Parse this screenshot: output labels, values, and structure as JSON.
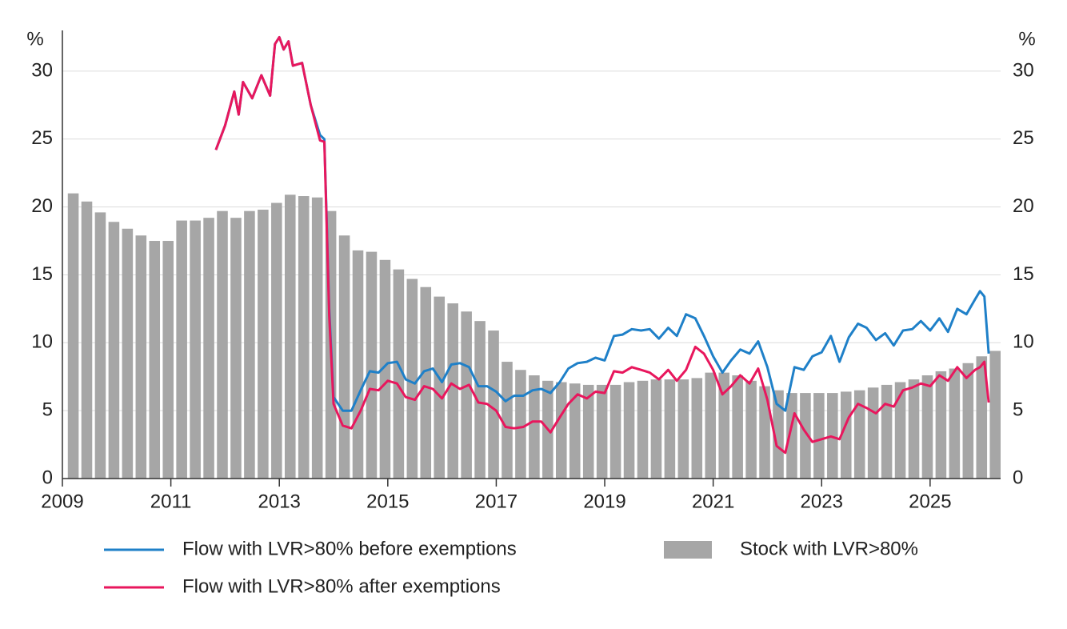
{
  "chart_data": {
    "type": "combo",
    "y_unit": "%",
    "y2_unit": "%",
    "xlim": [
      2009,
      2026.3
    ],
    "xticks": [
      2009,
      2011,
      2013,
      2015,
      2017,
      2019,
      2021,
      2023,
      2025
    ],
    "ylim": [
      0,
      33
    ],
    "yticks": [
      0,
      5,
      10,
      15,
      20,
      25,
      30
    ],
    "y2lim": [
      0,
      33
    ],
    "y2ticks": [
      0,
      5,
      10,
      15,
      20,
      25,
      30
    ],
    "grid": true,
    "series": [
      {
        "name": "Flow with LVR>80% before exemptions",
        "type": "line",
        "color": "#1f80c8",
        "x": [
          2011.83,
          2012,
          2012.17,
          2012.25,
          2012.33,
          2012.5,
          2012.67,
          2012.83,
          2012.92,
          2013,
          2013.08,
          2013.17,
          2013.25,
          2013.42,
          2013.58,
          2013.75,
          2013.83,
          2013.92,
          2014,
          2014.17,
          2014.33,
          2014.5,
          2014.67,
          2014.83,
          2015,
          2015.17,
          2015.33,
          2015.5,
          2015.67,
          2015.83,
          2016,
          2016.17,
          2016.33,
          2016.5,
          2016.67,
          2016.83,
          2017,
          2017.17,
          2017.33,
          2017.5,
          2017.67,
          2017.83,
          2018,
          2018.17,
          2018.33,
          2018.5,
          2018.67,
          2018.83,
          2019,
          2019.17,
          2019.33,
          2019.5,
          2019.67,
          2019.83,
          2020,
          2020.17,
          2020.33,
          2020.5,
          2020.67,
          2020.83,
          2021,
          2021.17,
          2021.33,
          2021.5,
          2021.67,
          2021.83,
          2022,
          2022.17,
          2022.33,
          2022.5,
          2022.67,
          2022.83,
          2023,
          2023.17,
          2023.33,
          2023.5,
          2023.67,
          2023.83,
          2024,
          2024.17,
          2024.33,
          2024.5,
          2024.67,
          2024.83,
          2025,
          2025.17,
          2025.33,
          2025.5,
          2025.67,
          2025.83,
          2025.92,
          2026,
          2026.08
        ],
        "values": [
          24.2,
          26.0,
          28.5,
          26.8,
          29.2,
          28.0,
          29.7,
          28.2,
          32.0,
          32.5,
          31.6,
          32.2,
          30.4,
          30.6,
          27.5,
          25.3,
          25.0,
          12.5,
          6.0,
          5.0,
          5.0,
          6.5,
          7.9,
          7.8,
          8.5,
          8.6,
          7.3,
          7.0,
          7.9,
          8.1,
          7.1,
          8.4,
          8.5,
          8.2,
          6.8,
          6.8,
          6.4,
          5.7,
          6.1,
          6.1,
          6.5,
          6.6,
          6.3,
          7.1,
          8.1,
          8.5,
          8.6,
          8.9,
          8.7,
          10.5,
          10.6,
          11.0,
          10.9,
          11.0,
          10.3,
          11.1,
          10.5,
          12.1,
          11.8,
          10.5,
          9.0,
          7.8,
          8.7,
          9.5,
          9.2,
          10.1,
          8.2,
          5.5,
          5.0,
          8.2,
          8.0,
          9.0,
          9.3,
          10.5,
          8.6,
          10.4,
          11.4,
          11.1,
          10.2,
          10.7,
          9.8,
          10.9,
          11.0,
          11.6,
          10.9,
          11.8,
          10.8,
          12.5,
          12.1,
          13.2,
          13.8,
          13.4,
          9.2
        ]
      },
      {
        "name": "Flow with LVR>80% after exemptions",
        "type": "line",
        "color": "#e8175d",
        "x": [
          2011.83,
          2012,
          2012.17,
          2012.25,
          2012.33,
          2012.5,
          2012.67,
          2012.83,
          2012.92,
          2013,
          2013.08,
          2013.17,
          2013.25,
          2013.42,
          2013.58,
          2013.75,
          2013.83,
          2013.92,
          2014,
          2014.17,
          2014.33,
          2014.5,
          2014.67,
          2014.83,
          2015,
          2015.17,
          2015.33,
          2015.5,
          2015.67,
          2015.83,
          2016,
          2016.17,
          2016.33,
          2016.5,
          2016.67,
          2016.83,
          2017,
          2017.17,
          2017.33,
          2017.5,
          2017.67,
          2017.83,
          2018,
          2018.17,
          2018.33,
          2018.5,
          2018.67,
          2018.83,
          2019,
          2019.17,
          2019.33,
          2019.5,
          2019.67,
          2019.83,
          2020,
          2020.17,
          2020.33,
          2020.5,
          2020.67,
          2020.83,
          2021,
          2021.17,
          2021.33,
          2021.5,
          2021.67,
          2021.83,
          2022,
          2022.17,
          2022.33,
          2022.5,
          2022.67,
          2022.83,
          2023,
          2023.17,
          2023.33,
          2023.5,
          2023.67,
          2023.83,
          2024,
          2024.17,
          2024.33,
          2024.5,
          2024.67,
          2024.83,
          2025,
          2025.17,
          2025.33,
          2025.5,
          2025.67,
          2025.83,
          2025.92,
          2026,
          2026.08
        ],
        "values": [
          24.2,
          26.0,
          28.5,
          26.8,
          29.2,
          28.0,
          29.7,
          28.2,
          32.0,
          32.5,
          31.6,
          32.2,
          30.4,
          30.6,
          27.5,
          24.9,
          24.8,
          12.0,
          5.5,
          3.9,
          3.7,
          5.0,
          6.6,
          6.5,
          7.2,
          7.0,
          6.0,
          5.8,
          6.8,
          6.6,
          5.9,
          7.0,
          6.6,
          6.9,
          5.6,
          5.5,
          5.0,
          3.8,
          3.7,
          3.8,
          4.2,
          4.2,
          3.4,
          4.5,
          5.5,
          6.2,
          5.9,
          6.4,
          6.3,
          7.9,
          7.8,
          8.2,
          8.0,
          7.8,
          7.3,
          8.0,
          7.2,
          8.0,
          9.7,
          9.2,
          8.0,
          6.2,
          6.8,
          7.6,
          7.0,
          8.1,
          5.8,
          2.4,
          1.9,
          4.8,
          3.6,
          2.7,
          2.9,
          3.1,
          2.9,
          4.5,
          5.5,
          5.2,
          4.8,
          5.5,
          5.3,
          6.5,
          6.7,
          7.0,
          6.8,
          7.6,
          7.2,
          8.2,
          7.4,
          8.0,
          8.2,
          8.6,
          5.6
        ]
      },
      {
        "name": "Stock with LVR>80%",
        "type": "bar",
        "color": "#a6a6a6",
        "x": [
          2009,
          2009.25,
          2009.5,
          2009.75,
          2010,
          2010.25,
          2010.5,
          2010.75,
          2011,
          2011.25,
          2011.5,
          2011.75,
          2012,
          2012.25,
          2012.5,
          2012.75,
          2013,
          2013.25,
          2013.5,
          2013.75,
          2014,
          2014.25,
          2014.5,
          2014.75,
          2015,
          2015.25,
          2015.5,
          2015.75,
          2016,
          2016.25,
          2016.5,
          2016.75,
          2017,
          2017.25,
          2017.5,
          2017.75,
          2018,
          2018.25,
          2018.5,
          2018.75,
          2019,
          2019.25,
          2019.5,
          2019.75,
          2020,
          2020.25,
          2020.5,
          2020.75,
          2021,
          2021.25,
          2021.5,
          2021.75,
          2022,
          2022.25,
          2022.5,
          2022.75,
          2023,
          2023.25,
          2023.5,
          2023.75,
          2024,
          2024.25,
          2024.5,
          2024.75,
          2025,
          2025.25,
          2025.5,
          2025.75,
          2026
        ],
        "values": [
          21.0,
          20.4,
          19.6,
          18.9,
          18.4,
          17.9,
          17.5,
          17.5,
          19.0,
          19.0,
          19.2,
          19.7,
          19.2,
          19.7,
          19.8,
          20.3,
          20.9,
          20.8,
          20.7,
          19.7,
          17.9,
          16.8,
          16.7,
          16.1,
          15.4,
          14.7,
          14.1,
          13.4,
          12.9,
          12.3,
          11.6,
          10.9,
          8.6,
          8.0,
          7.6,
          7.2,
          7.1,
          7.0,
          6.9,
          6.9,
          6.9,
          7.1,
          7.2,
          7.3,
          7.3,
          7.3,
          7.4,
          7.8,
          7.8,
          7.6,
          7.2,
          6.8,
          6.5,
          6.3,
          6.3,
          6.3,
          6.3,
          6.4,
          6.5,
          6.7,
          6.9,
          7.1,
          7.3,
          7.6,
          7.9,
          8.1,
          8.5,
          9.0,
          9.4
        ]
      }
    ]
  }
}
